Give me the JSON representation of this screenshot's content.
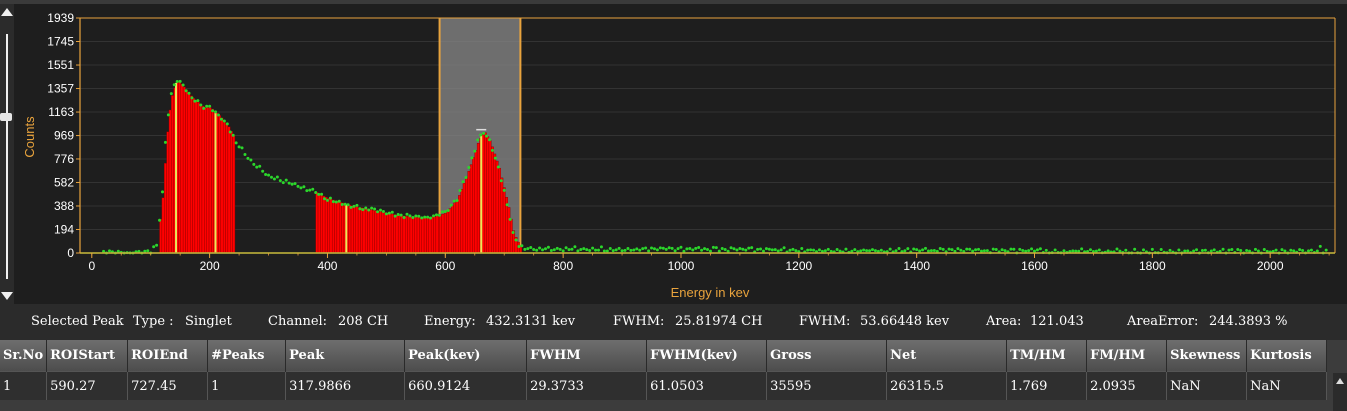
{
  "chart_data": {
    "type": "bar",
    "xlabel": "Energy in kev",
    "ylabel": "Counts",
    "xlim": [
      -20,
      2110
    ],
    "ylim": [
      0,
      1939
    ],
    "x_ticks": [
      "0",
      "200",
      "400",
      "600",
      "800",
      "1000",
      "1200",
      "1400",
      "1600",
      "1800",
      "2000"
    ],
    "y_ticks": [
      "1939",
      "1745",
      "1551",
      "1357",
      "1163",
      "969",
      "776",
      "582",
      "388",
      "194",
      "0"
    ],
    "roi_selection": [
      590.27,
      727.45
    ],
    "spectrum": [
      [
        90,
        0
      ],
      [
        100,
        10
      ],
      [
        110,
        60
      ],
      [
        120,
        500
      ],
      [
        125,
        900
      ],
      [
        130,
        1150
      ],
      [
        135,
        1300
      ],
      [
        140,
        1380
      ],
      [
        145,
        1420
      ],
      [
        150,
        1400
      ],
      [
        160,
        1340
      ],
      [
        170,
        1280
      ],
      [
        180,
        1240
      ],
      [
        190,
        1200
      ],
      [
        200,
        1200
      ],
      [
        210,
        1160
      ],
      [
        220,
        1110
      ],
      [
        230,
        1050
      ],
      [
        240,
        960
      ],
      [
        250,
        880
      ],
      [
        260,
        820
      ],
      [
        270,
        760
      ],
      [
        280,
        720
      ],
      [
        290,
        680
      ],
      [
        300,
        640
      ],
      [
        320,
        600
      ],
      [
        340,
        570
      ],
      [
        360,
        540
      ],
      [
        380,
        500
      ],
      [
        400,
        450
      ],
      [
        420,
        420
      ],
      [
        440,
        390
      ],
      [
        460,
        370
      ],
      [
        480,
        350
      ],
      [
        500,
        330
      ],
      [
        520,
        310
      ],
      [
        540,
        300
      ],
      [
        560,
        290
      ],
      [
        580,
        300
      ],
      [
        600,
        330
      ],
      [
        620,
        450
      ],
      [
        640,
        700
      ],
      [
        655,
        920
      ],
      [
        665,
        1000
      ],
      [
        675,
        920
      ],
      [
        690,
        700
      ],
      [
        705,
        400
      ],
      [
        715,
        160
      ],
      [
        725,
        60
      ],
      [
        740,
        40
      ],
      [
        800,
        35
      ],
      [
        900,
        32
      ],
      [
        1000,
        30
      ],
      [
        1200,
        25
      ],
      [
        1400,
        20
      ],
      [
        1600,
        18
      ],
      [
        1800,
        15
      ],
      [
        2000,
        12
      ],
      [
        2080,
        12
      ],
      [
        2085,
        60
      ],
      [
        2090,
        10
      ]
    ],
    "peak_fills": [
      {
        "from": 115,
        "to": 240
      },
      {
        "from": 380,
        "to": 590
      },
      {
        "from": 590,
        "to": 727
      }
    ],
    "peak_markers": [
      143,
      210,
      432,
      661
    ],
    "colors": {
      "background": "#1e1e1e",
      "axis": "#e8a33d",
      "bar": "#ff0000",
      "points": "#2bd62b",
      "marker": "#e8e85a",
      "roi": "#8a8a8a",
      "roi_border": "#e8a33d"
    }
  },
  "info": {
    "selected_peak": "Selected Peak",
    "type_label": "Type :",
    "type_value": "Singlet",
    "channel_label": "Channel:",
    "channel_value": "208 CH",
    "energy_label": "Energy:",
    "energy_value": "432.3131 kev",
    "fwhm_ch_label": "FWHM:",
    "fwhm_ch_value": "25.81974 CH",
    "fwhm_kev_label": "FWHM:",
    "fwhm_kev_value": "53.66448 kev",
    "area_label": "Area:",
    "area_value": "121.043",
    "areaerror_label": "AreaError:",
    "areaerror_value": "244.3893 %"
  },
  "table": {
    "headers": [
      "Sr.No",
      "ROIStart",
      "ROIEnd",
      "#Peaks",
      "Peak",
      "Peak(kev)",
      "FWHM",
      "FWHM(kev)",
      "Gross",
      "Net",
      "TM/HM",
      "FM/HM",
      "Skewness",
      "Kurtosis"
    ],
    "rows": [
      [
        "1",
        "590.27",
        "727.45",
        "1",
        "317.9866",
        "660.9124",
        "29.3733",
        "61.0503",
        "35595",
        "26315.5",
        "1.769",
        "2.0935",
        "NaN",
        "NaN"
      ]
    ]
  }
}
